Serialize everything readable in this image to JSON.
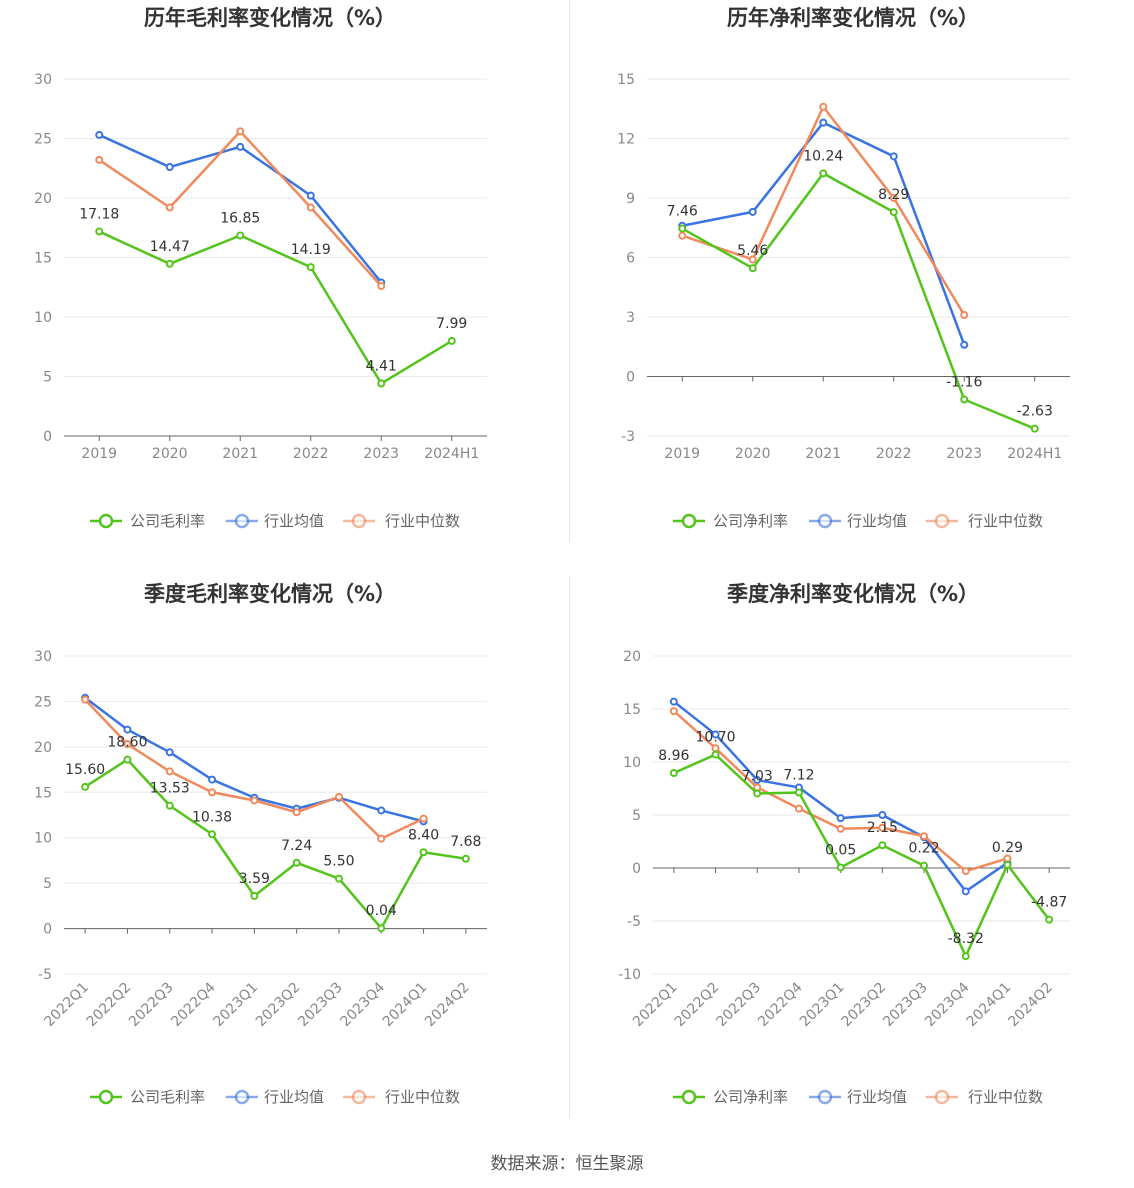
{
  "colors": {
    "company": "#52c41a",
    "average": "#3a74e0",
    "median": "#f08a5d"
  },
  "legend_gross": [
    "公司毛利率",
    "行业均值",
    "行业中位数"
  ],
  "legend_net": [
    "公司净利率",
    "行业均值",
    "行业中位数"
  ],
  "footer": "数据来源：恒生聚源",
  "chart_data": [
    {
      "type": "line",
      "title": "历年毛利率变化情况（%）",
      "categories": [
        "2019",
        "2020",
        "2021",
        "2022",
        "2023",
        "2024H1"
      ],
      "ylim": [
        0,
        30
      ],
      "yticks": [
        0,
        5,
        10,
        15,
        20,
        25,
        30
      ],
      "label_decimals": 2,
      "legend": "bottom",
      "series": [
        {
          "name": "公司毛利率",
          "key": "company",
          "values": [
            17.18,
            14.47,
            16.85,
            14.19,
            4.41,
            7.99
          ],
          "labels": true
        },
        {
          "name": "行业均值",
          "key": "average",
          "values": [
            25.3,
            22.6,
            24.3,
            20.2,
            12.9,
            null
          ],
          "labels": false
        },
        {
          "name": "行业中位数",
          "key": "median",
          "values": [
            23.2,
            19.2,
            25.6,
            19.2,
            12.6,
            null
          ],
          "labels": false
        }
      ]
    },
    {
      "type": "line",
      "title": "历年净利率变化情况（%）",
      "categories": [
        "2019",
        "2020",
        "2021",
        "2022",
        "2023",
        "2024H1"
      ],
      "ylim": [
        -3,
        15
      ],
      "yticks": [
        -3,
        0,
        3,
        6,
        9,
        12,
        15
      ],
      "label_decimals": 2,
      "legend": "bottom",
      "series": [
        {
          "name": "公司净利率",
          "key": "company",
          "values": [
            7.46,
            5.46,
            10.24,
            8.29,
            -1.16,
            -2.63
          ],
          "labels": true
        },
        {
          "name": "行业均值",
          "key": "average",
          "values": [
            7.6,
            8.3,
            12.8,
            11.1,
            1.6,
            null
          ],
          "labels": false
        },
        {
          "name": "行业中位数",
          "key": "median",
          "values": [
            7.1,
            5.9,
            13.6,
            9.0,
            3.1,
            null
          ],
          "labels": false
        }
      ]
    },
    {
      "type": "line",
      "title": "季度毛利率变化情况（%）",
      "categories": [
        "2022Q1",
        "2022Q2",
        "2022Q3",
        "2022Q4",
        "2023Q1",
        "2023Q2",
        "2023Q3",
        "2023Q4",
        "2024Q1",
        "2024Q2"
      ],
      "ylim": [
        -5,
        30
      ],
      "yticks": [
        -5,
        0,
        5,
        10,
        15,
        20,
        25,
        30
      ],
      "label_decimals": 2,
      "rotate_x": true,
      "legend": "bottom",
      "series": [
        {
          "name": "公司毛利率",
          "key": "company",
          "values": [
            15.6,
            18.6,
            13.53,
            10.38,
            3.59,
            7.24,
            5.5,
            0.04,
            8.4,
            7.68
          ],
          "labels": true
        },
        {
          "name": "行业均值",
          "key": "average",
          "values": [
            25.4,
            21.9,
            19.4,
            16.4,
            14.4,
            13.2,
            14.4,
            13.0,
            11.8,
            null
          ],
          "labels": false
        },
        {
          "name": "行业中位数",
          "key": "median",
          "values": [
            25.2,
            20.3,
            17.3,
            15.0,
            14.1,
            12.8,
            14.5,
            9.9,
            12.1,
            null
          ],
          "labels": false
        }
      ]
    },
    {
      "type": "line",
      "title": "季度净利率变化情况（%）",
      "categories": [
        "2022Q1",
        "2022Q2",
        "2022Q3",
        "2022Q4",
        "2023Q1",
        "2023Q2",
        "2023Q3",
        "2023Q4",
        "2024Q1",
        "2024Q2"
      ],
      "ylim": [
        -10,
        20
      ],
      "yticks": [
        -10,
        -5,
        0,
        5,
        10,
        15,
        20
      ],
      "label_decimals": 2,
      "rotate_x": true,
      "legend": "bottom",
      "series": [
        {
          "name": "公司净利率",
          "key": "company",
          "values": [
            8.96,
            10.7,
            7.03,
            7.12,
            0.05,
            2.15,
            0.22,
            -8.32,
            0.29,
            -4.87
          ],
          "labels": true
        },
        {
          "name": "行业均值",
          "key": "average",
          "values": [
            15.7,
            12.6,
            8.3,
            7.6,
            4.7,
            5.0,
            2.9,
            -2.2,
            0.5,
            null
          ],
          "labels": false
        },
        {
          "name": "行业中位数",
          "key": "median",
          "values": [
            14.8,
            11.3,
            7.6,
            5.6,
            3.7,
            3.8,
            3.0,
            -0.3,
            0.9,
            null
          ],
          "labels": false
        }
      ]
    }
  ]
}
